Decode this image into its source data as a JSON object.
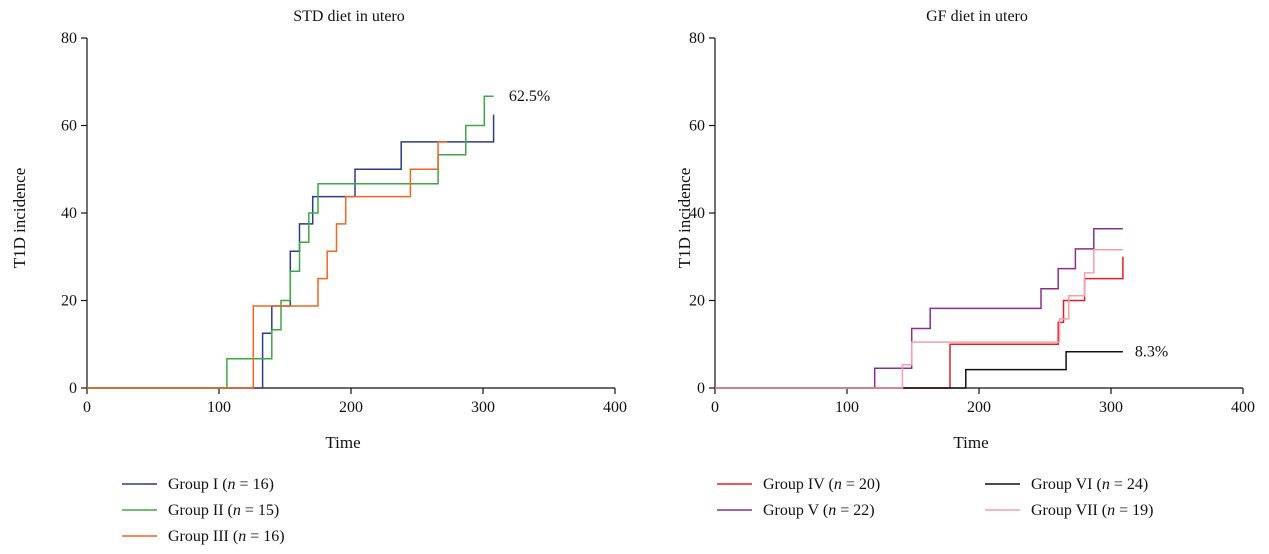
{
  "chart_data": [
    {
      "type": "line",
      "step": true,
      "title": "STD diet in utero",
      "xlabel": "Time",
      "ylabel": "T1D incidence",
      "xlim": [
        0,
        400
      ],
      "ylim": [
        0,
        80
      ],
      "xticks": [
        "0",
        "100",
        "200",
        "300",
        "400"
      ],
      "yticks": [
        "0",
        "20",
        "40",
        "60",
        "80"
      ],
      "annotation": "62.5%",
      "series": [
        {
          "name": "Group I (n = 16)",
          "color": "#2e3a8c",
          "points": [
            [
              0,
              0
            ],
            [
              133,
              0
            ],
            [
              133,
              12.5
            ],
            [
              140,
              12.5
            ],
            [
              140,
              18.75
            ],
            [
              154,
              18.75
            ],
            [
              154,
              31.25
            ],
            [
              161,
              31.25
            ],
            [
              161,
              37.5
            ],
            [
              171,
              37.5
            ],
            [
              171,
              43.75
            ],
            [
              203,
              43.75
            ],
            [
              203,
              50
            ],
            [
              238,
              50
            ],
            [
              238,
              56.25
            ],
            [
              308,
              56.25
            ],
            [
              308,
              62.5
            ]
          ]
        },
        {
          "name": "Group II (n = 15)",
          "color": "#3aa843",
          "points": [
            [
              0,
              0
            ],
            [
              106,
              0
            ],
            [
              106,
              6.7
            ],
            [
              140,
              6.7
            ],
            [
              140,
              13.3
            ],
            [
              147,
              13.3
            ],
            [
              147,
              20
            ],
            [
              154,
              20
            ],
            [
              154,
              26.7
            ],
            [
              161,
              26.7
            ],
            [
              161,
              33.3
            ],
            [
              168,
              33.3
            ],
            [
              168,
              40
            ],
            [
              175,
              40
            ],
            [
              175,
              46.7
            ],
            [
              210,
              46.7
            ],
            [
              210,
              46.7
            ],
            [
              266,
              46.7
            ],
            [
              266,
              53.3
            ],
            [
              287,
              53.3
            ],
            [
              287,
              60
            ],
            [
              301,
              60
            ],
            [
              301,
              66.7
            ],
            [
              308,
              66.7
            ]
          ]
        },
        {
          "name": "Group III (n = 16)",
          "color": "#f26522",
          "points": [
            [
              0,
              0
            ],
            [
              126,
              0
            ],
            [
              126,
              18.75
            ],
            [
              175,
              18.75
            ],
            [
              175,
              25
            ],
            [
              182,
              25
            ],
            [
              182,
              31.25
            ],
            [
              189,
              31.25
            ],
            [
              189,
              37.5
            ],
            [
              196,
              37.5
            ],
            [
              196,
              43.75
            ],
            [
              245,
              43.75
            ],
            [
              245,
              50
            ],
            [
              266,
              50
            ],
            [
              266,
              56.25
            ],
            [
              273,
              56.25
            ]
          ]
        }
      ]
    },
    {
      "type": "line",
      "step": true,
      "title": "GF diet in utero",
      "xlabel": "Time",
      "ylabel": "T1D incidence",
      "xlim": [
        0,
        400
      ],
      "ylim": [
        0,
        80
      ],
      "xticks": [
        "0",
        "100",
        "200",
        "300",
        "400"
      ],
      "yticks": [
        "0",
        "20",
        "40",
        "60",
        "80"
      ],
      "annotation": "8.3%",
      "series": [
        {
          "name": "Group IV (n = 20)",
          "color": "#e31e24",
          "points": [
            [
              0,
              0
            ],
            [
              178,
              0
            ],
            [
              178,
              10
            ],
            [
              260,
              10
            ],
            [
              260,
              15
            ],
            [
              264,
              15
            ],
            [
              264,
              20
            ],
            [
              280,
              20
            ],
            [
              280,
              25
            ],
            [
              300,
              25
            ],
            [
              300,
              25
            ],
            [
              309,
              25
            ],
            [
              309,
              30
            ]
          ]
        },
        {
          "name": "Group V (n = 22)",
          "color": "#8b2f8f",
          "points": [
            [
              0,
              0
            ],
            [
              121,
              0
            ],
            [
              121,
              4.5
            ],
            [
              149,
              4.5
            ],
            [
              149,
              13.6
            ],
            [
              163,
              13.6
            ],
            [
              163,
              18.2
            ],
            [
              247,
              18.2
            ],
            [
              247,
              22.7
            ],
            [
              260,
              22.7
            ],
            [
              260,
              27.3
            ],
            [
              273,
              27.3
            ],
            [
              273,
              31.8
            ],
            [
              287,
              31.8
            ],
            [
              287,
              36.4
            ],
            [
              309,
              36.4
            ]
          ]
        },
        {
          "name": "Group VI (n = 24)",
          "color": "#111111",
          "points": [
            [
              0,
              0
            ],
            [
              190,
              0
            ],
            [
              190,
              4.2
            ],
            [
              266,
              4.2
            ],
            [
              266,
              8.3
            ],
            [
              309,
              8.3
            ]
          ]
        },
        {
          "name": "Group VII (n = 19)",
          "color": "#f4a0a8",
          "points": [
            [
              0,
              0
            ],
            [
              142,
              0
            ],
            [
              142,
              5.3
            ],
            [
              149,
              5.3
            ],
            [
              149,
              10.5
            ],
            [
              261,
              10.5
            ],
            [
              261,
              15.8
            ],
            [
              268,
              15.8
            ],
            [
              268,
              21.1
            ],
            [
              280,
              21.1
            ],
            [
              280,
              26.3
            ],
            [
              287,
              26.3
            ],
            [
              287,
              31.6
            ],
            [
              309,
              31.6
            ]
          ]
        }
      ]
    }
  ]
}
